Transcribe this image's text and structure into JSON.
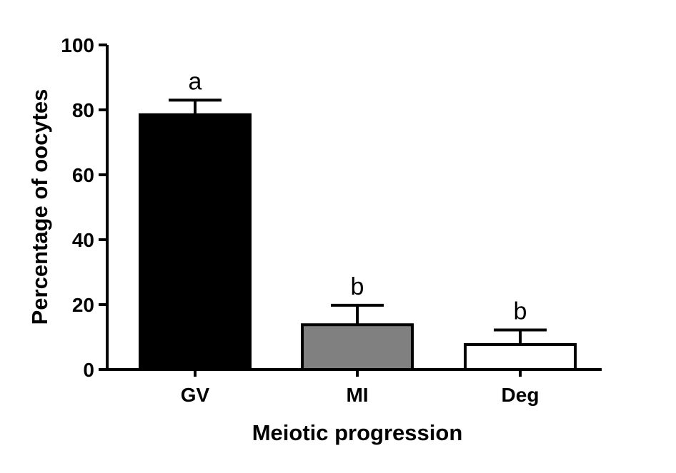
{
  "chart_data": {
    "type": "bar",
    "title": "",
    "xlabel": "Meiotic progression",
    "ylabel": "Percentage of oocytes",
    "ylim": [
      0,
      100
    ],
    "yticks": [
      0,
      20,
      40,
      60,
      80,
      100
    ],
    "categories": [
      "GV",
      "MI",
      "Deg"
    ],
    "values": [
      78.5,
      13.8,
      7.7
    ],
    "error_upper": [
      4.5,
      6.0,
      4.5
    ],
    "significance_labels": [
      "a",
      "b",
      "b"
    ],
    "bar_colors": [
      "#000000",
      "#808080",
      "#ffffff"
    ],
    "bar_edge_color": "#000000",
    "grid": false,
    "legend": "none"
  }
}
